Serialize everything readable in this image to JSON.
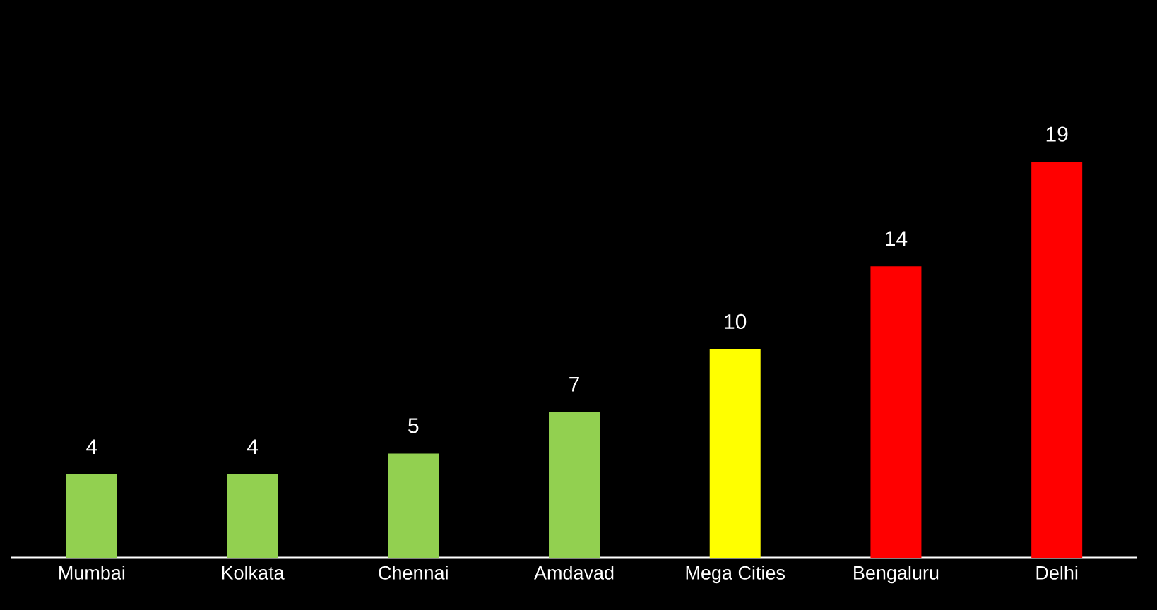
{
  "chart_data": {
    "type": "bar",
    "categories": [
      "Mumbai",
      "Kolkata",
      "Chennai",
      "Amdavad",
      "Mega Cities",
      "Bengaluru",
      "Delhi"
    ],
    "values": [
      4,
      4,
      5,
      7,
      10,
      14,
      19
    ],
    "colors": [
      "#92d050",
      "#92d050",
      "#92d050",
      "#92d050",
      "#ffff00",
      "#ff0000",
      "#ff0000"
    ],
    "data_labels": true
  }
}
